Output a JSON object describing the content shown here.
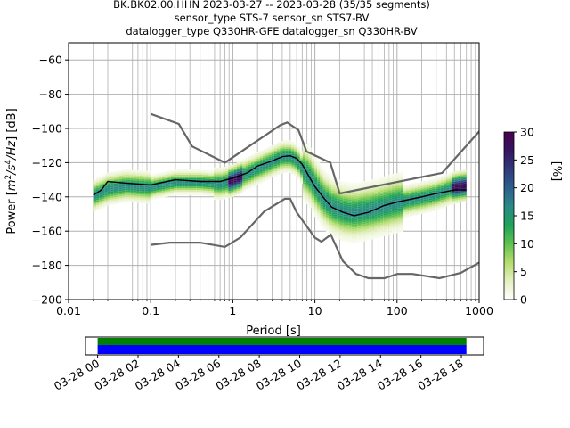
{
  "header": {
    "title_line1": "BK.BK02.00.HHN   2023-03-27 -- 2023-03-28  (35/35 segments)",
    "title_line2": "sensor_type STS-7 sensor_sn STS7-BV",
    "title_line3": "datalogger_type Q330HR-GFE datalogger_sn Q330HR-BV"
  },
  "colorbar": {
    "label": "[%]",
    "min": 0,
    "max": 30,
    "ticks": [
      "0",
      "5",
      "10",
      "15",
      "20",
      "25",
      "30"
    ],
    "colors": [
      "#ffffff",
      "#e4f0c0",
      "#b5dc6d",
      "#5fc14f",
      "#1fa25a",
      "#2a8a86",
      "#2d5f8d",
      "#313a7b",
      "#35155e",
      "#4a0050"
    ]
  },
  "timeline": {
    "ticks": [
      "03-28 00",
      "03-28 02",
      "03-28 04",
      "03-28 06",
      "03-28 08",
      "03-28 10",
      "03-28 12",
      "03-28 14",
      "03-28 16",
      "03-28 18"
    ],
    "range_hours": [
      -0.6,
      19.1
    ],
    "coverage_hours": [
      0.0,
      18.25
    ],
    "green_color": "#008000",
    "blue_color": "#0000ff"
  },
  "chart_data": {
    "type": "heatmap",
    "xlabel": "Period [s]",
    "ylabel_parts": [
      "Power [",
      "m",
      "2",
      "/s",
      "4",
      "/Hz",
      "] [dB]"
    ],
    "xscale": "log",
    "xlim": [
      0.01,
      1000
    ],
    "ylim": [
      -200,
      -50
    ],
    "xticks": [
      {
        "v": 0.01,
        "label": "0.01"
      },
      {
        "v": 0.1,
        "label": "0.1"
      },
      {
        "v": 1,
        "label": "1"
      },
      {
        "v": 10,
        "label": "10"
      },
      {
        "v": 100,
        "label": "100"
      },
      {
        "v": 1000,
        "label": "1000"
      }
    ],
    "yticks": [
      -200,
      -180,
      -160,
      -140,
      -120,
      -100,
      -80,
      -60
    ],
    "grid": true,
    "period_range": [
      0.02,
      700
    ],
    "median": [
      [
        0.02,
        -139
      ],
      [
        0.025,
        -136
      ],
      [
        0.03,
        -131
      ],
      [
        0.05,
        -132
      ],
      [
        0.1,
        -133
      ],
      [
        0.2,
        -130
      ],
      [
        0.4,
        -131
      ],
      [
        0.7,
        -131
      ],
      [
        1,
        -129
      ],
      [
        1.5,
        -126
      ],
      [
        2,
        -122
      ],
      [
        3,
        -119
      ],
      [
        4,
        -116.5
      ],
      [
        5,
        -116
      ],
      [
        6,
        -117.5
      ],
      [
        7,
        -121
      ],
      [
        8,
        -126
      ],
      [
        10,
        -134
      ],
      [
        13,
        -141
      ],
      [
        16,
        -146
      ],
      [
        22,
        -149
      ],
      [
        30,
        -151
      ],
      [
        45,
        -149
      ],
      [
        70,
        -145
      ],
      [
        100,
        -143
      ],
      [
        200,
        -140
      ],
      [
        300,
        -138
      ],
      [
        500,
        -136
      ],
      [
        700,
        -136
      ]
    ],
    "mode": [
      [
        0.02,
        -140
      ],
      [
        0.03,
        -136
      ],
      [
        0.05,
        -134
      ],
      [
        0.1,
        -135
      ],
      [
        0.2,
        -132
      ],
      [
        0.4,
        -132
      ],
      [
        0.7,
        -133
      ],
      [
        1,
        -131
      ],
      [
        2,
        -124
      ],
      [
        3,
        -120
      ],
      [
        4,
        -117
      ],
      [
        5,
        -117
      ],
      [
        6,
        -119
      ],
      [
        7,
        -124
      ],
      [
        9,
        -130
      ],
      [
        10,
        -134
      ],
      [
        13,
        -142
      ],
      [
        16,
        -146
      ],
      [
        22,
        -149
      ],
      [
        30,
        -150
      ],
      [
        50,
        -148
      ],
      [
        70,
        -146
      ],
      [
        100,
        -144
      ],
      [
        200,
        -141
      ],
      [
        300,
        -139
      ],
      [
        500,
        -135
      ],
      [
        700,
        -134
      ]
    ],
    "nhnm": [
      [
        0.1,
        -91.5
      ],
      [
        0.22,
        -97.4
      ],
      [
        0.32,
        -110.5
      ],
      [
        0.8,
        -120
      ],
      [
        3.8,
        -98
      ],
      [
        4.6,
        -96.5
      ],
      [
        6.3,
        -101
      ],
      [
        7.9,
        -113.5
      ],
      [
        15.4,
        -120
      ],
      [
        20,
        -138
      ],
      [
        354.8,
        -126
      ],
      [
        10000,
        -48
      ]
    ],
    "nlnm": [
      [
        0.1,
        -168
      ],
      [
        0.17,
        -166.7
      ],
      [
        0.4,
        -166.7
      ],
      [
        0.8,
        -169.2
      ],
      [
        1.24,
        -163.7
      ],
      [
        2.4,
        -148.6
      ],
      [
        4.3,
        -141.1
      ],
      [
        5,
        -141.1
      ],
      [
        6,
        -149
      ],
      [
        10,
        -163.8
      ],
      [
        12,
        -166.2
      ],
      [
        15.6,
        -162.1
      ],
      [
        21.9,
        -177.5
      ],
      [
        31.6,
        -185
      ],
      [
        45,
        -187.5
      ],
      [
        70,
        -187.5
      ],
      [
        101,
        -185
      ],
      [
        154,
        -185
      ],
      [
        328,
        -187.5
      ],
      [
        600,
        -184.4
      ],
      [
        10000,
        -151.5
      ]
    ],
    "distribution_note_levels": [
      0,
      5,
      10,
      15,
      20,
      25,
      30
    ]
  }
}
